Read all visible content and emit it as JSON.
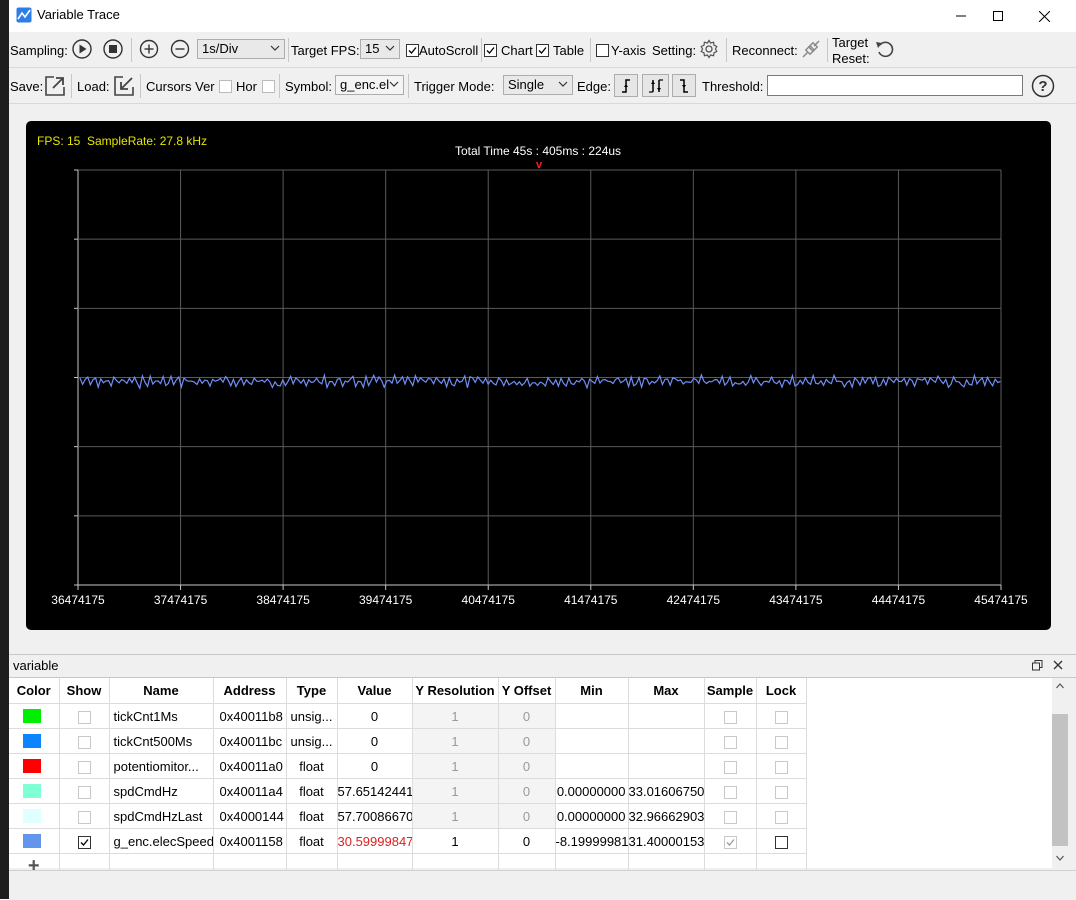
{
  "window": {
    "title": "Variable Trace",
    "minimize": "—",
    "maximize": "☐",
    "close": "✕"
  },
  "toolbar1": {
    "sampling_label": "Sampling:",
    "time_div": "1s/Div",
    "target_fps_label": "Target FPS:",
    "target_fps_value": "15",
    "autoscroll_label": "AutoScroll",
    "autoscroll_checked": true,
    "chart_label": "Chart",
    "chart_checked": true,
    "table_label": "Table",
    "table_checked": true,
    "yaxis_label": "Y-axis",
    "yaxis_checked": false,
    "setting_label": "Setting:",
    "reconnect_label": "Reconnect:",
    "target_reset_line1": "Target",
    "target_reset_line2": "Reset:"
  },
  "toolbar2": {
    "save_label": "Save:",
    "load_label": "Load:",
    "cursors_label": "Cursors Ver",
    "hor_label": "Hor",
    "symbol_label": "Symbol:",
    "symbol_value": "g_enc.el",
    "trigger_mode_label": "Trigger Mode:",
    "trigger_mode_value": "Single",
    "edge_label": "Edge:",
    "threshold_label": "Threshold:",
    "threshold_value": "",
    "help": "?"
  },
  "chart": {
    "fps_text": "FPS: 15",
    "samplerate_text": "SampleRate: 27.8 kHz",
    "total_time": "Total Time 45s : 405ms : 224us",
    "trigger_marker": "v",
    "background": "#000000",
    "grid_color": "#5a5a5a",
    "trace_color": "#6f8ff5",
    "text_yellow": "#e6e600"
  },
  "chart_data": {
    "type": "line",
    "x_tick_labels": [
      "36474175",
      "37474175",
      "38474175",
      "39474175",
      "40474175",
      "41474175",
      "42474175",
      "43474175",
      "44474175",
      "45474175"
    ],
    "xlim": [
      36474175,
      45474175
    ],
    "series": [
      {
        "signal": "g_enc.elecSpeed",
        "approx_level_fraction_of_plot_height": 0.49,
        "noise_amplitude_fraction": 0.012
      }
    ],
    "grid": true
  },
  "panel": {
    "title": "variable",
    "columns": [
      "Color",
      "Show",
      "Name",
      "Address",
      "Type",
      "Value",
      "Y Resolution",
      "Y Offset",
      "Min",
      "Max",
      "Sample",
      "Lock"
    ],
    "rows": [
      {
        "color": "#00ee00",
        "show": false,
        "name": "tickCnt1Ms",
        "address": "0x40011b8",
        "type": "unsig...",
        "value": "0",
        "yres": "1",
        "yoff": "0",
        "min": "",
        "max": "",
        "sample": false,
        "lock": false,
        "dim": true
      },
      {
        "color": "#0a84ff",
        "show": false,
        "name": "tickCnt500Ms",
        "address": "0x40011bc",
        "type": "unsig...",
        "value": "0",
        "yres": "1",
        "yoff": "0",
        "min": "",
        "max": "",
        "sample": false,
        "lock": false,
        "dim": true
      },
      {
        "color": "#ff0000",
        "show": false,
        "name": "potentiomitor...",
        "address": "0x40011a0",
        "type": "float",
        "value": "0",
        "yres": "1",
        "yoff": "0",
        "min": "",
        "max": "",
        "sample": false,
        "lock": false,
        "dim": true
      },
      {
        "color": "#7fffd4",
        "show": false,
        "name": "spdCmdHz",
        "address": "0x40011a4",
        "type": "float",
        "value": "57.65142441",
        "yres": "1",
        "yoff": "0",
        "min": "0.00000000",
        "max": "33.01606750",
        "sample": false,
        "lock": false,
        "dim": true
      },
      {
        "color": "#e0ffff",
        "show": false,
        "name": "spdCmdHzLast",
        "address": "0x4000144",
        "type": "float",
        "value": "57.70086670",
        "yres": "1",
        "yoff": "0",
        "min": "0.00000000",
        "max": "32.96662903",
        "sample": false,
        "lock": false,
        "dim": true
      },
      {
        "color": "#6495ed",
        "show": true,
        "name": "g_enc.elecSpeed",
        "address": "0x4001158",
        "type": "float",
        "value": "30.59999847",
        "yres": "1",
        "yoff": "0",
        "min": "-8.19999981",
        "max": "31.40000153",
        "sample": true,
        "lock": false,
        "dim": false
      }
    ],
    "add_symbol": "+"
  }
}
